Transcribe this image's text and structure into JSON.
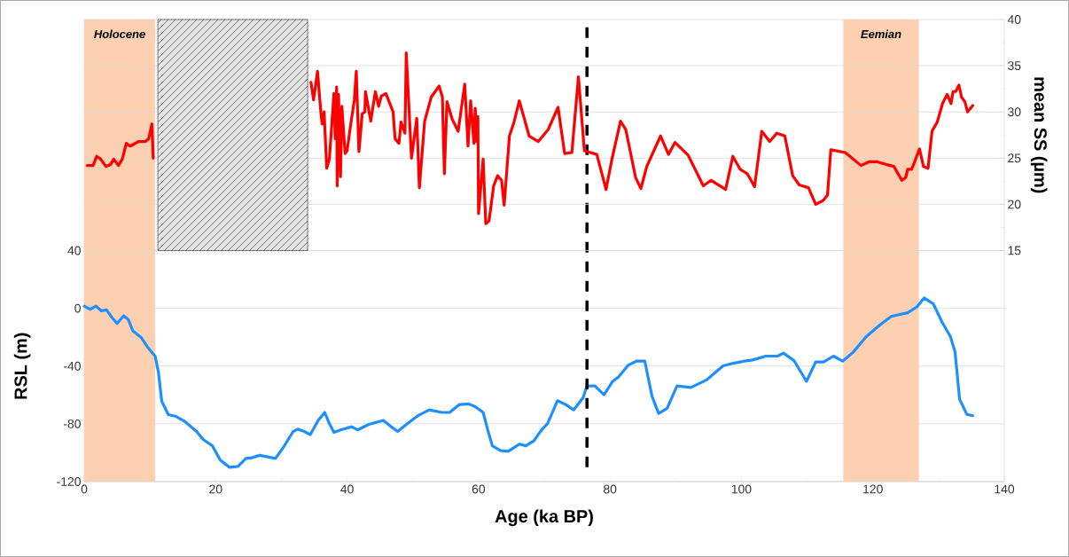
{
  "chart_data": {
    "type": "line",
    "xlabel": "Age (ka BP)",
    "ylabel": "RSL (m)",
    "y2label": "mean SS (µm)",
    "xlim": [
      0,
      140
    ],
    "xticks": [
      0,
      20,
      40,
      60,
      80,
      100,
      120,
      140
    ],
    "ylim": [
      -120,
      200
    ],
    "yticks": [
      -120,
      -80,
      -40,
      0,
      40
    ],
    "y2lim": [
      -10,
      40
    ],
    "y2ticks": [
      15,
      20,
      25,
      30,
      35,
      40
    ],
    "grid": "y",
    "bands": [
      {
        "axis": "x",
        "from": 0,
        "to": 10.8,
        "label": "Holocene",
        "color": "#fdd0b1"
      },
      {
        "axis": "x",
        "from": 115.5,
        "to": 127,
        "label": "Eemian",
        "color": "#fdd0b1"
      },
      {
        "axis": "x",
        "from": 11.2,
        "to": 34,
        "color": "#e4e4e4"
      }
    ],
    "ref_lines": [
      {
        "axis": "x",
        "value": 76.5,
        "color": "#000000",
        "line_style": "dashed"
      }
    ],
    "series": [
      {
        "color": "#1e8fff",
        "x": [
          0,
          0.9,
          1.8,
          2.6,
          3.4,
          4.2,
          5.0,
          6.0,
          6.7,
          7.4,
          8.7,
          9.6,
          10.8,
          11.3,
          11.8,
          12.8,
          14.0,
          15.4,
          17.1,
          18.1,
          19.5,
          20.7,
          22.1,
          23.4,
          24.6,
          25.5,
          26.7,
          27.9,
          29.1,
          30.3,
          31.8,
          32.5,
          33.5,
          34.4,
          35.6,
          36.6,
          37.3,
          38.0,
          39.0,
          40.7,
          41.6,
          43.3,
          45.5,
          46.7,
          47.7,
          48.9,
          50.8,
          52.5,
          54.4,
          55.6,
          57.1,
          58.5,
          59.5,
          60.7,
          61.4,
          62.1,
          63.3,
          64.5,
          66.2,
          67.2,
          68.4,
          69.6,
          70.5,
          72.0,
          73.2,
          74.5,
          75.9,
          76.5,
          77.7,
          79.1,
          80.4,
          81.3,
          82.8,
          84.0,
          85.3,
          86.4,
          87.4,
          88.7,
          90.2,
          92.3,
          94.7,
          95.9,
          97.2,
          98.6,
          100.4,
          101.7,
          103.7,
          105.5,
          106.4,
          108.0,
          109.9,
          111.3,
          112.5,
          114.0,
          115.4,
          117.0,
          119.0,
          121.0,
          122.8,
          125.3,
          126.7,
          127.8,
          129.2,
          130.5,
          131.8,
          132.5,
          133.2,
          134.3,
          135.2
        ],
        "values": [
          1.5,
          -0.7,
          1.5,
          -1.8,
          -1.1,
          -6.2,
          -10.5,
          -5.1,
          -7.7,
          -15.6,
          -20.4,
          -26.6,
          -33.2,
          -44.6,
          -64.4,
          -73.6,
          -74.9,
          -78.7,
          -85.3,
          -90.8,
          -95.2,
          -105.1,
          -110.1,
          -109.5,
          -104.0,
          -103.5,
          -101.8,
          -102.9,
          -104.0,
          -96.3,
          -85.3,
          -83.7,
          -85.3,
          -87.5,
          -77.6,
          -72.1,
          -79.8,
          -85.9,
          -84.2,
          -82.0,
          -84.2,
          -80.4,
          -77.6,
          -82.0,
          -85.3,
          -80.9,
          -74.3,
          -70.3,
          -72.1,
          -72.1,
          -66.6,
          -66.2,
          -68.1,
          -72.1,
          -84.2,
          -95.2,
          -98.5,
          -99.1,
          -94.1,
          -95.2,
          -91.9,
          -84.2,
          -79.8,
          -64.0,
          -66.5,
          -70.3,
          -62.0,
          -53.7,
          -53.7,
          -59.9,
          -50.6,
          -47.5,
          -39.3,
          -36.6,
          -36.6,
          -61.0,
          -72.8,
          -69.2,
          -53.7,
          -54.8,
          -49.6,
          -44.9,
          -39.9,
          -38.2,
          -36.6,
          -35.8,
          -33.1,
          -33.1,
          -31.0,
          -36.2,
          -50.6,
          -37.2,
          -37.2,
          -33.1,
          -36.6,
          -30.4,
          -19.6,
          -11.8,
          -5.6,
          -3.1,
          1.0,
          7.2,
          3.1,
          -9.3,
          -19.6,
          -30.0,
          -63.0,
          -73.4,
          -74.4
        ]
      },
      {
        "color": "#ff0000",
        "axis": "y2",
        "x": [
          0.45,
          1.35,
          1.9,
          2.5,
          3.3,
          4.0,
          4.5,
          5.2,
          5.8,
          6.4,
          7.0,
          8.3,
          9.3,
          9.8,
          10.3,
          10.5,
          22,
          34.5,
          34.9,
          35.5,
          36.0,
          36.2,
          36.5,
          36.9,
          37.3,
          38.0,
          38.2,
          38.4,
          38.5,
          38.7,
          39.0,
          39.2,
          39.7,
          40.0,
          40.5,
          41.1,
          41.4,
          41.8,
          42.3,
          42.7,
          42.8,
          43.6,
          44.3,
          44.8,
          45.2,
          45.9,
          47.0,
          47.3,
          47.9,
          48.2,
          48.8,
          49.0,
          49.8,
          50.6,
          51.0,
          51.8,
          52.8,
          54.0,
          54.5,
          54.8,
          55.2,
          56.0,
          56.9,
          57.9,
          58.4,
          58.8,
          59.3,
          59.5,
          59.7,
          59.9,
          60.0,
          60.7,
          61.1,
          61.6,
          62.3,
          62.9,
          63.5,
          63.9,
          64.7,
          65.4,
          66.2,
          67.7,
          69.1,
          70.6,
          72.1,
          73.1,
          74.2,
          75.2,
          76.1,
          78.0,
          79.4,
          80.3,
          81.6,
          82.4,
          83.9,
          84.7,
          85.6,
          87.7,
          88.9,
          89.9,
          91.9,
          94.2,
          95.4,
          97.6,
          98.7,
          99.8,
          100.9,
          102.0,
          103.1,
          104.3,
          105.4,
          106.6,
          107.8,
          108.8,
          110.2,
          111.3,
          112.4,
          113.1,
          113.6,
          115.8,
          118.2,
          119.4,
          120.7,
          122.1,
          123.2,
          124.4,
          125.0,
          125.3,
          125.9,
          126.3,
          127.1,
          127.7,
          128.4,
          129.0,
          129.8,
          130.6,
          131.3,
          131.9,
          132.2,
          132.6,
          133.1,
          133.5,
          134.0,
          134.4,
          135.2
        ],
        "values": [
          24.2,
          24.2,
          25.2,
          24.9,
          24.1,
          24.3,
          24.9,
          24.2,
          24.9,
          26.6,
          26.3,
          26.8,
          26.8,
          27.1,
          28.7,
          25.0,
          null,
          33.2,
          31.3,
          34.4,
          30.0,
          28.7,
          30.0,
          23.9,
          24.9,
          32.0,
          27.1,
          32.7,
          22.0,
          31.9,
          23.0,
          30.6,
          25.5,
          25.8,
          28.4,
          31.3,
          34.4,
          25.7,
          29.8,
          30.0,
          32.2,
          29.0,
          32.2,
          30.6,
          31.7,
          32.0,
          30.0,
          27.1,
          26.6,
          28.9,
          27.7,
          36.4,
          25.0,
          29.3,
          21.8,
          29.0,
          31.6,
          32.8,
          31.6,
          23.3,
          31.1,
          29.2,
          27.9,
          33.0,
          26.3,
          31.2,
          26.6,
          30.4,
          26.8,
          29.5,
          19.0,
          24.9,
          17.9,
          18.2,
          22.0,
          23.1,
          22.6,
          19.9,
          27.4,
          28.9,
          31.2,
          27.4,
          26.8,
          28.1,
          30.5,
          25.5,
          25.6,
          33.8,
          25.8,
          25.4,
          21.6,
          24.9,
          29.0,
          28.1,
          22.9,
          21.7,
          24.1,
          27.4,
          25.4,
          26.7,
          25.3,
          22.0,
          22.6,
          21.6,
          25.2,
          23.8,
          23.3,
          21.9,
          27.9,
          26.8,
          27.7,
          27.4,
          23.1,
          22.1,
          21.8,
          20.0,
          20.4,
          21.0,
          25.9,
          25.6,
          24.2,
          24.6,
          24.6,
          24.3,
          24.1,
          22.6,
          22.9,
          23.8,
          23.8,
          24.5,
          26.0,
          24.1,
          23.9,
          27.9,
          28.9,
          30.9,
          31.9,
          30.9,
          32.2,
          32.2,
          32.9,
          31.6,
          31.1,
          30.0,
          30.7
        ]
      }
    ]
  }
}
